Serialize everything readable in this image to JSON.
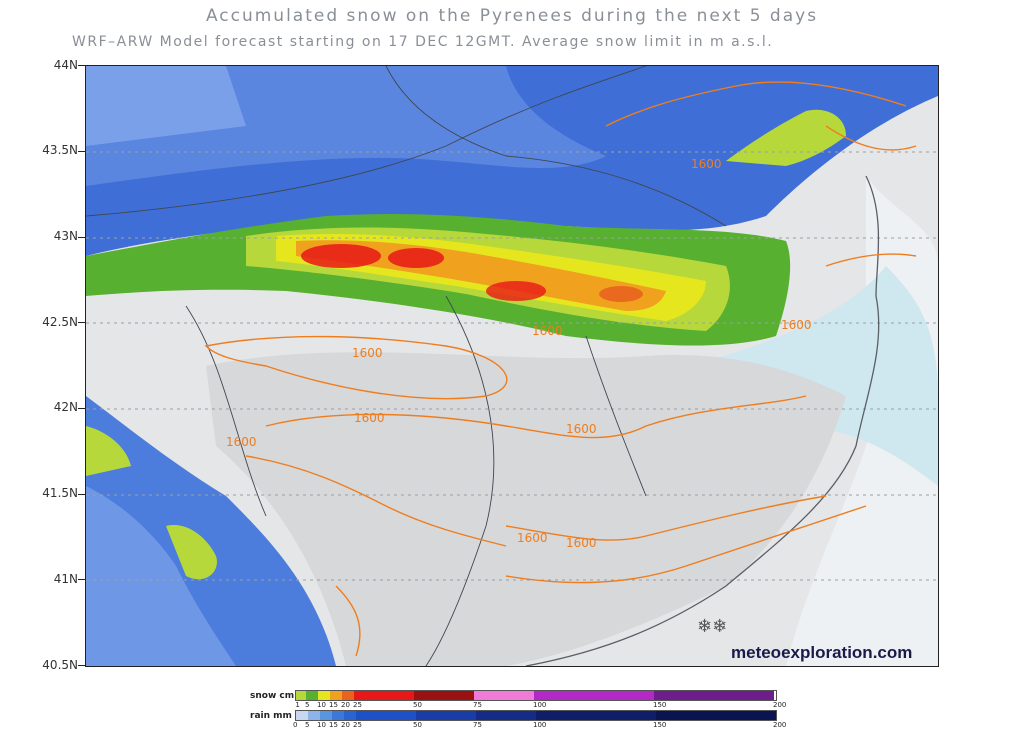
{
  "header": {
    "title": "Accumulated snow on the Pyrenees during the next 5 days",
    "subtitle": "WRF–ARW Model forecast starting on 17 DEC 12GMT.  Average snow limit in m a.s.l."
  },
  "axis": {
    "latitude_labels": [
      "44N",
      "43.5N",
      "43N",
      "42.5N",
      "42N",
      "41.5N",
      "41N",
      "40.5N"
    ]
  },
  "contours": {
    "snow_limit_labels": [
      "1600",
      "1600",
      "1600",
      "1600",
      "1600",
      "1600",
      "1600",
      "1600",
      "1600"
    ]
  },
  "branding": {
    "site": "meteoexploration.com"
  },
  "legend": {
    "snow": {
      "label": "snow cm",
      "ticks": [
        "1",
        "5",
        "10",
        "15",
        "20",
        "25",
        "50",
        "75",
        "100",
        "150",
        "200"
      ],
      "colors": [
        "#b7d83a",
        "#58b030",
        "#e6e61e",
        "#f0a21e",
        "#e8641e",
        "#e81818",
        "#9b1010",
        "#f07ad8",
        "#b428c8",
        "#6e1e8c"
      ]
    },
    "rain": {
      "label": "rain mm",
      "ticks": [
        "0",
        "5",
        "10",
        "15",
        "20",
        "25",
        "50",
        "75",
        "100",
        "150",
        "200"
      ],
      "colors": [
        "#c8d8f0",
        "#8cb4e8",
        "#5a96e0",
        "#3c78d8",
        "#2a64d0",
        "#1e50c8",
        "#1a3ca8",
        "#142c88",
        "#0e1e68",
        "#0a1450"
      ]
    }
  }
}
